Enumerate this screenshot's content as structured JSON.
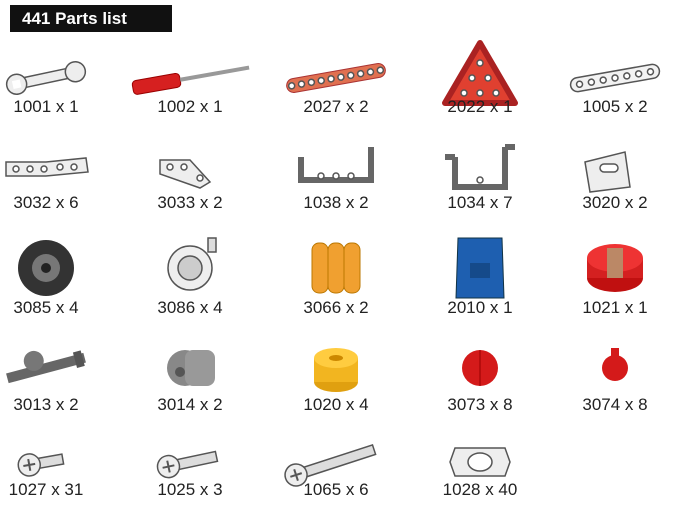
{
  "header": {
    "title": "441 Parts list"
  },
  "parts": [
    {
      "label": "1001 x 1"
    },
    {
      "label": "1002 x 1"
    },
    {
      "label": "2027 x 2"
    },
    {
      "label": "2022 x 1"
    },
    {
      "label": "1005 x 2"
    },
    {
      "label": "3032 x 6"
    },
    {
      "label": "3033 x 2"
    },
    {
      "label": "1038 x 2"
    },
    {
      "label": "1034 x 7"
    },
    {
      "label": "3020 x 2"
    },
    {
      "label": "3085 x 4"
    },
    {
      "label": "3086 x 4"
    },
    {
      "label": "3066 x 2"
    },
    {
      "label": "2010 x 1"
    },
    {
      "label": "1021 x 1"
    },
    {
      "label": "3013 x 2"
    },
    {
      "label": "3014 x 2"
    },
    {
      "label": "1020 x 4"
    },
    {
      "label": "3073 x 8"
    },
    {
      "label": "3074 x 8"
    },
    {
      "label": "1027 x 31"
    },
    {
      "label": "1025 x 3"
    },
    {
      "label": "1065 x 6"
    },
    {
      "label": "1028 x 40"
    }
  ]
}
